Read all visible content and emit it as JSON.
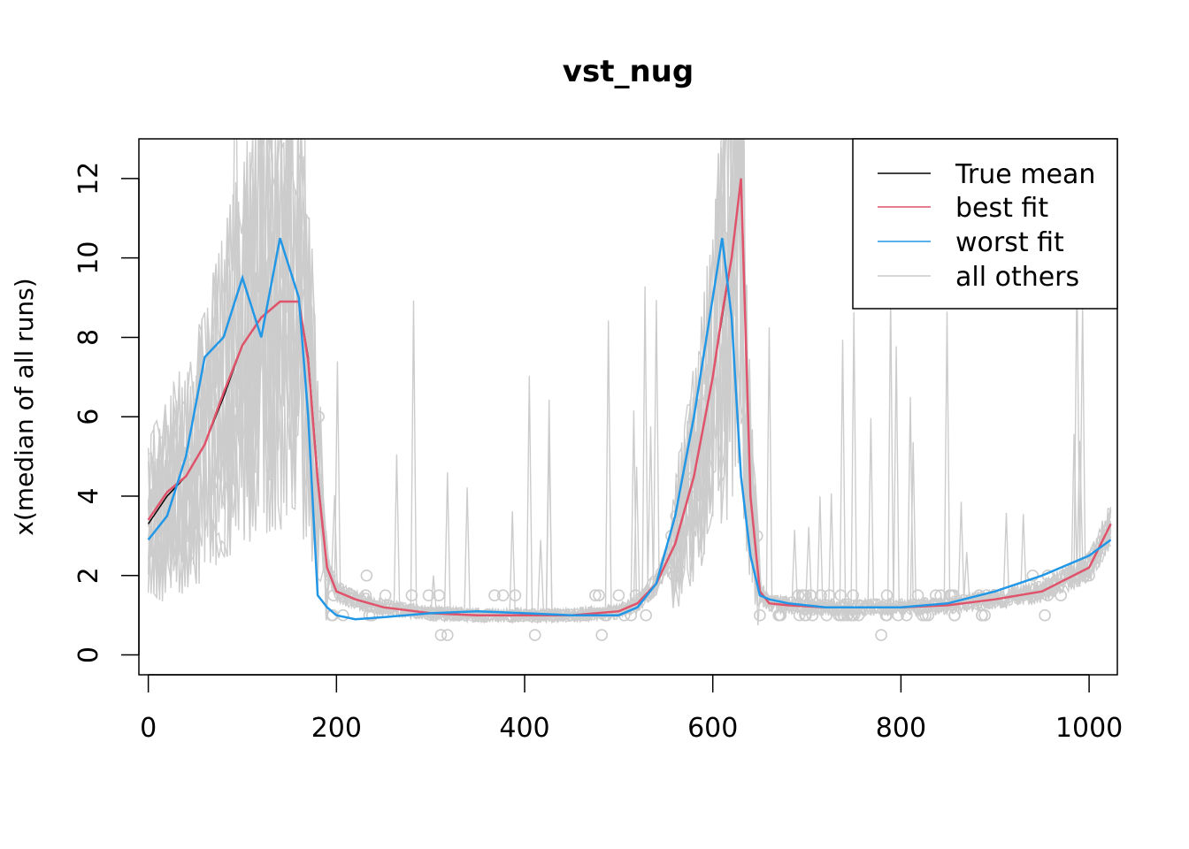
{
  "chart_data": {
    "type": "line",
    "title": "vst_nug",
    "xlabel": "",
    "ylabel": "x(median of all runs)",
    "xlim": [
      -10,
      1030
    ],
    "ylim": [
      -0.5,
      13
    ],
    "x_ticks": [
      0,
      200,
      400,
      600,
      800,
      1000
    ],
    "y_ticks": [
      0,
      2,
      4,
      6,
      8,
      10,
      12
    ],
    "legend_position": "top-right",
    "legend": [
      {
        "label": "True mean",
        "color": "#000000"
      },
      {
        "label": "best fit",
        "color": "#DF536B"
      },
      {
        "label": "worst fit",
        "color": "#2297E6"
      },
      {
        "label": "all others",
        "color": "#CCCCCC"
      }
    ],
    "series": [
      {
        "name": "True mean",
        "color": "#000000",
        "x": [
          0,
          20,
          40,
          60,
          80,
          100,
          120,
          140,
          160,
          170,
          180,
          190,
          200,
          220,
          250,
          300,
          350,
          400,
          450,
          500,
          520,
          540,
          560,
          580,
          600,
          610,
          620,
          630,
          640,
          650,
          660,
          680,
          720,
          760,
          800,
          850,
          900,
          950,
          1000,
          1023
        ],
        "y": [
          3.3,
          4.0,
          4.5,
          5.3,
          6.5,
          7.8,
          8.5,
          8.9,
          8.9,
          7.5,
          4.5,
          2.2,
          1.6,
          1.4,
          1.2,
          1.05,
          1.0,
          1.0,
          1.0,
          1.1,
          1.3,
          1.8,
          2.8,
          4.5,
          7.0,
          8.5,
          10.0,
          12.0,
          4.0,
          1.6,
          1.3,
          1.25,
          1.2,
          1.2,
          1.2,
          1.25,
          1.4,
          1.6,
          2.2,
          3.3
        ]
      },
      {
        "name": "best fit",
        "color": "#DF536B",
        "x": [
          0,
          20,
          40,
          60,
          80,
          100,
          120,
          140,
          160,
          170,
          180,
          190,
          200,
          220,
          250,
          300,
          350,
          400,
          450,
          500,
          520,
          540,
          560,
          580,
          600,
          610,
          620,
          630,
          640,
          650,
          660,
          680,
          720,
          760,
          800,
          850,
          900,
          950,
          1000,
          1023
        ],
        "y": [
          3.4,
          4.1,
          4.5,
          5.3,
          6.6,
          7.8,
          8.5,
          8.9,
          8.9,
          7.4,
          4.4,
          2.2,
          1.6,
          1.4,
          1.2,
          1.05,
          1.0,
          1.0,
          1.0,
          1.1,
          1.3,
          1.8,
          2.8,
          4.5,
          7.0,
          8.6,
          10.0,
          12.0,
          4.0,
          1.6,
          1.3,
          1.25,
          1.2,
          1.2,
          1.2,
          1.25,
          1.4,
          1.6,
          2.2,
          3.3
        ]
      },
      {
        "name": "worst fit",
        "color": "#2297E6",
        "x": [
          0,
          20,
          40,
          60,
          80,
          100,
          120,
          140,
          160,
          170,
          180,
          190,
          200,
          220,
          250,
          300,
          350,
          400,
          450,
          500,
          520,
          540,
          560,
          580,
          600,
          610,
          620,
          630,
          640,
          650,
          660,
          680,
          720,
          760,
          800,
          850,
          900,
          950,
          1000,
          1023
        ],
        "y": [
          2.9,
          3.5,
          5.0,
          7.5,
          8.0,
          9.5,
          8.0,
          10.5,
          9.0,
          6.0,
          1.5,
          1.2,
          1.0,
          0.9,
          0.95,
          1.05,
          1.1,
          1.05,
          1.0,
          1.0,
          1.2,
          1.8,
          3.5,
          6.0,
          9.0,
          10.5,
          8.5,
          4.5,
          2.5,
          1.5,
          1.4,
          1.3,
          1.2,
          1.2,
          1.2,
          1.3,
          1.6,
          2.0,
          2.5,
          2.9
        ]
      }
    ]
  }
}
